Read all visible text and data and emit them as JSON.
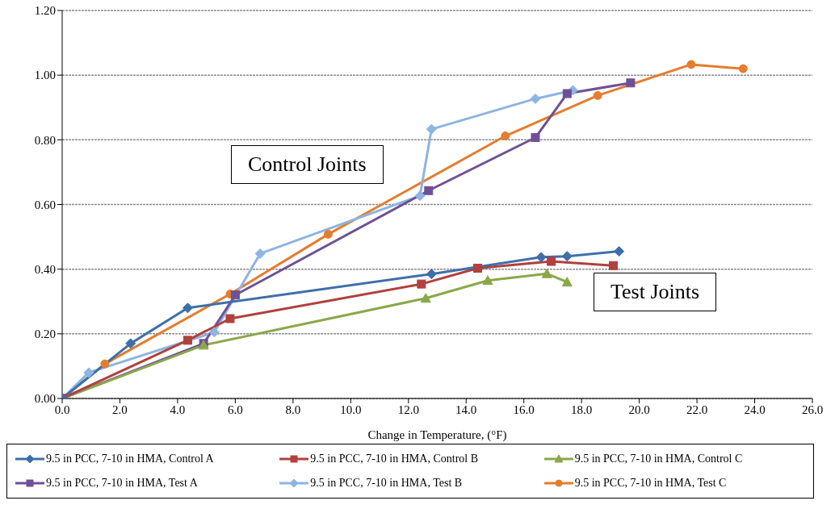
{
  "chart_data": {
    "type": "line",
    "xlabel": "Change in Temperature, (°F)",
    "xlim": [
      0,
      26
    ],
    "xticks": [
      {
        "value": 0,
        "label": "0.0"
      },
      {
        "value": 2,
        "label": "2.0"
      },
      {
        "value": 4,
        "label": "4.0"
      },
      {
        "value": 6,
        "label": "6.0"
      },
      {
        "value": 8,
        "label": "8.0"
      },
      {
        "value": 10,
        "label": "10.0"
      },
      {
        "value": 12,
        "label": "12.0"
      },
      {
        "value": 14,
        "label": "14.0"
      },
      {
        "value": 16,
        "label": "16.0"
      },
      {
        "value": 18,
        "label": "18.0"
      },
      {
        "value": 20,
        "label": "20.0"
      },
      {
        "value": 22,
        "label": "22.0"
      },
      {
        "value": 24,
        "label": "24.0"
      },
      {
        "value": 26,
        "label": "26.0"
      }
    ],
    "ylim": [
      0,
      1.2
    ],
    "yticks": [
      {
        "value": 0,
        "label": "0.00"
      },
      {
        "value": 0.2,
        "label": "0.20"
      },
      {
        "value": 0.4,
        "label": "0.40"
      },
      {
        "value": 0.6,
        "label": "0.60"
      },
      {
        "value": 0.8,
        "label": "0.80"
      },
      {
        "value": 1,
        "label": "1.00"
      },
      {
        "value": 1.2,
        "label": "1.20"
      }
    ],
    "grid": "y",
    "legend": "bottom",
    "line_style": "solid",
    "annotations": [
      "Control Joints",
      "Test Joints"
    ],
    "series": [
      {
        "name": "9.5 in PCC, 7-10 in HMA, Control A",
        "color": "#3f6fa8",
        "marker": "diamond",
        "x": [
          0,
          2.37,
          4.35,
          12.8,
          16.6,
          17.5,
          19.3
        ],
        "values": [
          0,
          0.17,
          0.28,
          0.385,
          0.437,
          0.44,
          0.455
        ]
      },
      {
        "name": "9.5 in PCC, 7-10 in HMA, Control B",
        "color": "#b0413e",
        "marker": "square",
        "x": [
          0,
          4.35,
          5.82,
          12.45,
          14.4,
          16.95,
          19.1
        ],
        "values": [
          0,
          0.18,
          0.247,
          0.354,
          0.403,
          0.424,
          0.411
        ]
      },
      {
        "name": "9.5 in PCC, 7-10 in HMA, Control C",
        "color": "#8aa84a",
        "marker": "triangle",
        "x": [
          0,
          4.9,
          12.6,
          14.75,
          16.8,
          17.5
        ],
        "values": [
          0,
          0.165,
          0.31,
          0.365,
          0.386,
          0.36
        ]
      },
      {
        "name": "9.5 in PCC, 7-10 in HMA, Test A",
        "color": "#6e5096",
        "marker": "square",
        "x": [
          0,
          4.9,
          6.0,
          12.7,
          16.4,
          17.5,
          19.7
        ],
        "values": [
          0,
          0.17,
          0.32,
          0.643,
          0.807,
          0.943,
          0.976
        ]
      },
      {
        "name": "9.5 in PCC, 7-10 in HMA, Test B",
        "color": "#8db4e2",
        "marker": "diamond",
        "x": [
          0,
          0.92,
          5.27,
          6.86,
          12.4,
          12.8,
          16.4,
          17.7
        ],
        "values": [
          0,
          0.08,
          0.205,
          0.448,
          0.627,
          0.833,
          0.927,
          0.953
        ]
      },
      {
        "name": "9.5 in PCC, 7-10 in HMA, Test C",
        "color": "#e47d2e",
        "marker": "circle",
        "x": [
          0,
          1.48,
          5.82,
          9.22,
          15.36,
          18.56,
          21.8,
          23.6
        ],
        "values": [
          0,
          0.107,
          0.323,
          0.508,
          0.812,
          0.937,
          1.033,
          1.02
        ]
      }
    ]
  }
}
